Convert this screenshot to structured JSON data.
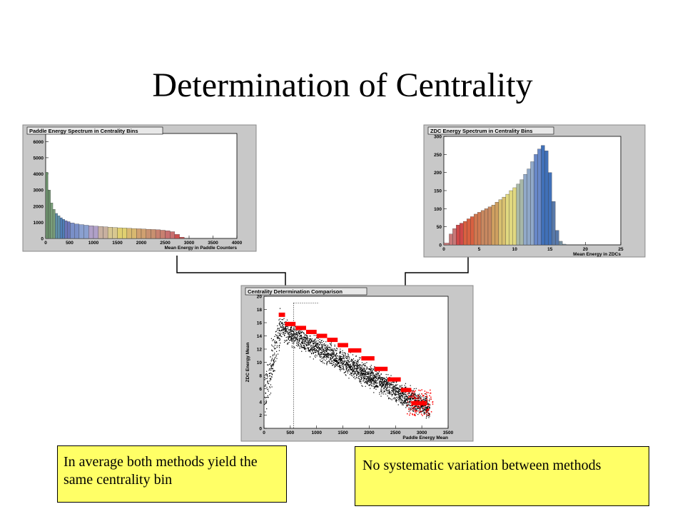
{
  "slide": {
    "title": "Determination of Centrality",
    "note_left": "In average both methods yield the same centrality bin",
    "note_right": "No systematic variation between methods"
  },
  "colors": {
    "panel_bg": "#c8c8c8",
    "plot_bg": "#ffffff",
    "note_bg": "#ffff66",
    "scatter_points": "#000000",
    "scatter_means": "#ff0000"
  },
  "chart_data": [
    {
      "type": "bar",
      "title": "Paddle Energy Spectrum in Centrality Bins",
      "xlabel": "Mean Energy in Paddle Counters",
      "ylabel": "",
      "xlim": [
        0,
        4000
      ],
      "ylim": [
        0,
        6500
      ],
      "xticks": [
        0,
        500,
        1000,
        1500,
        2000,
        2500,
        3000,
        3500,
        4000
      ],
      "yticks": [
        0,
        1000,
        2000,
        3000,
        4000,
        5000,
        6000
      ],
      "x": [
        25,
        75,
        125,
        175,
        225,
        275,
        325,
        375,
        425,
        475,
        550,
        650,
        750,
        850,
        950,
        1050,
        1150,
        1250,
        1350,
        1450,
        1550,
        1650,
        1750,
        1850,
        1950,
        2050,
        2150,
        2250,
        2350,
        2450,
        2550,
        2650,
        2750,
        2850
      ],
      "values": [
        4100,
        3000,
        2200,
        1800,
        1550,
        1400,
        1280,
        1180,
        1100,
        1040,
        960,
        900,
        860,
        820,
        790,
        760,
        740,
        720,
        700,
        680,
        660,
        645,
        630,
        615,
        600,
        585,
        570,
        555,
        540,
        510,
        480,
        420,
        250,
        80
      ],
      "bin_colors": [
        "#6b8f6b",
        "#7a9e7a",
        "#5f8fa8",
        "#4f7fb8",
        "#6a74b8",
        "#7a8fc8",
        "#8aa0d0",
        "#b0a0c8",
        "#c8b0a0",
        "#d8c890",
        "#e0d070",
        "#d8b870",
        "#d0a070",
        "#c89070",
        "#c88070",
        "#c87070",
        "#cc5050"
      ]
    },
    {
      "type": "bar",
      "title": "ZDC Energy Spectrum in Centrality Bins",
      "xlabel": "Mean Energy in ZDCs",
      "ylabel": "",
      "xlim": [
        0,
        25
      ],
      "ylim": [
        0,
        300
      ],
      "xticks": [
        0,
        5,
        10,
        15,
        20,
        25
      ],
      "yticks": [
        0,
        50,
        100,
        150,
        200,
        250,
        300
      ],
      "x": [
        0.5,
        1,
        1.5,
        2,
        2.5,
        3,
        3.5,
        4,
        4.5,
        5,
        5.5,
        6,
        6.5,
        7,
        7.5,
        8,
        8.5,
        9,
        9.5,
        10,
        10.5,
        11,
        11.5,
        12,
        12.5,
        13,
        13.5,
        14,
        14.5,
        15,
        15.5,
        16,
        16.5,
        17
      ],
      "values": [
        5,
        30,
        45,
        55,
        60,
        65,
        72,
        78,
        85,
        90,
        95,
        100,
        105,
        110,
        118,
        125,
        132,
        140,
        150,
        158,
        168,
        180,
        195,
        210,
        230,
        250,
        265,
        275,
        260,
        200,
        120,
        40,
        10,
        2
      ],
      "bin_colors": [
        "#c87878",
        "#d04848",
        "#d86040",
        "#d07850",
        "#c88860",
        "#d0a060",
        "#d8c070",
        "#e0d880",
        "#a8b8a8",
        "#90a8c8",
        "#6888c8",
        "#4070b8",
        "#5878a8",
        "#7890a0"
      ]
    },
    {
      "type": "scatter",
      "title": "Centrality Determination Comparison",
      "xlabel": "Paddle Energy Mean",
      "ylabel": "ZDC Energy Mean",
      "xlim": [
        0,
        3500
      ],
      "ylim": [
        0,
        20
      ],
      "xticks": [
        0,
        500,
        1000,
        1500,
        2000,
        2500,
        3000,
        3500
      ],
      "yticks": [
        0,
        2,
        4,
        6,
        8,
        10,
        12,
        14,
        16,
        18,
        20
      ],
      "mean_steps": [
        {
          "x": [
            280,
            400
          ],
          "y": 17.2
        },
        {
          "x": [
            400,
            600
          ],
          "y": 15.8
        },
        {
          "x": [
            600,
            800
          ],
          "y": 15.2
        },
        {
          "x": [
            800,
            1000
          ],
          "y": 14.6
        },
        {
          "x": [
            1000,
            1200
          ],
          "y": 14.0
        },
        {
          "x": [
            1200,
            1400
          ],
          "y": 13.4
        },
        {
          "x": [
            1400,
            1600
          ],
          "y": 12.6
        },
        {
          "x": [
            1600,
            1850
          ],
          "y": 11.8
        },
        {
          "x": [
            1850,
            2100
          ],
          "y": 10.6
        },
        {
          "x": [
            2100,
            2350
          ],
          "y": 9.0
        },
        {
          "x": [
            2350,
            2600
          ],
          "y": 7.4
        },
        {
          "x": [
            2600,
            2800
          ],
          "y": 5.8
        },
        {
          "x": [
            2800,
            3100
          ],
          "y": 3.8
        }
      ]
    }
  ]
}
